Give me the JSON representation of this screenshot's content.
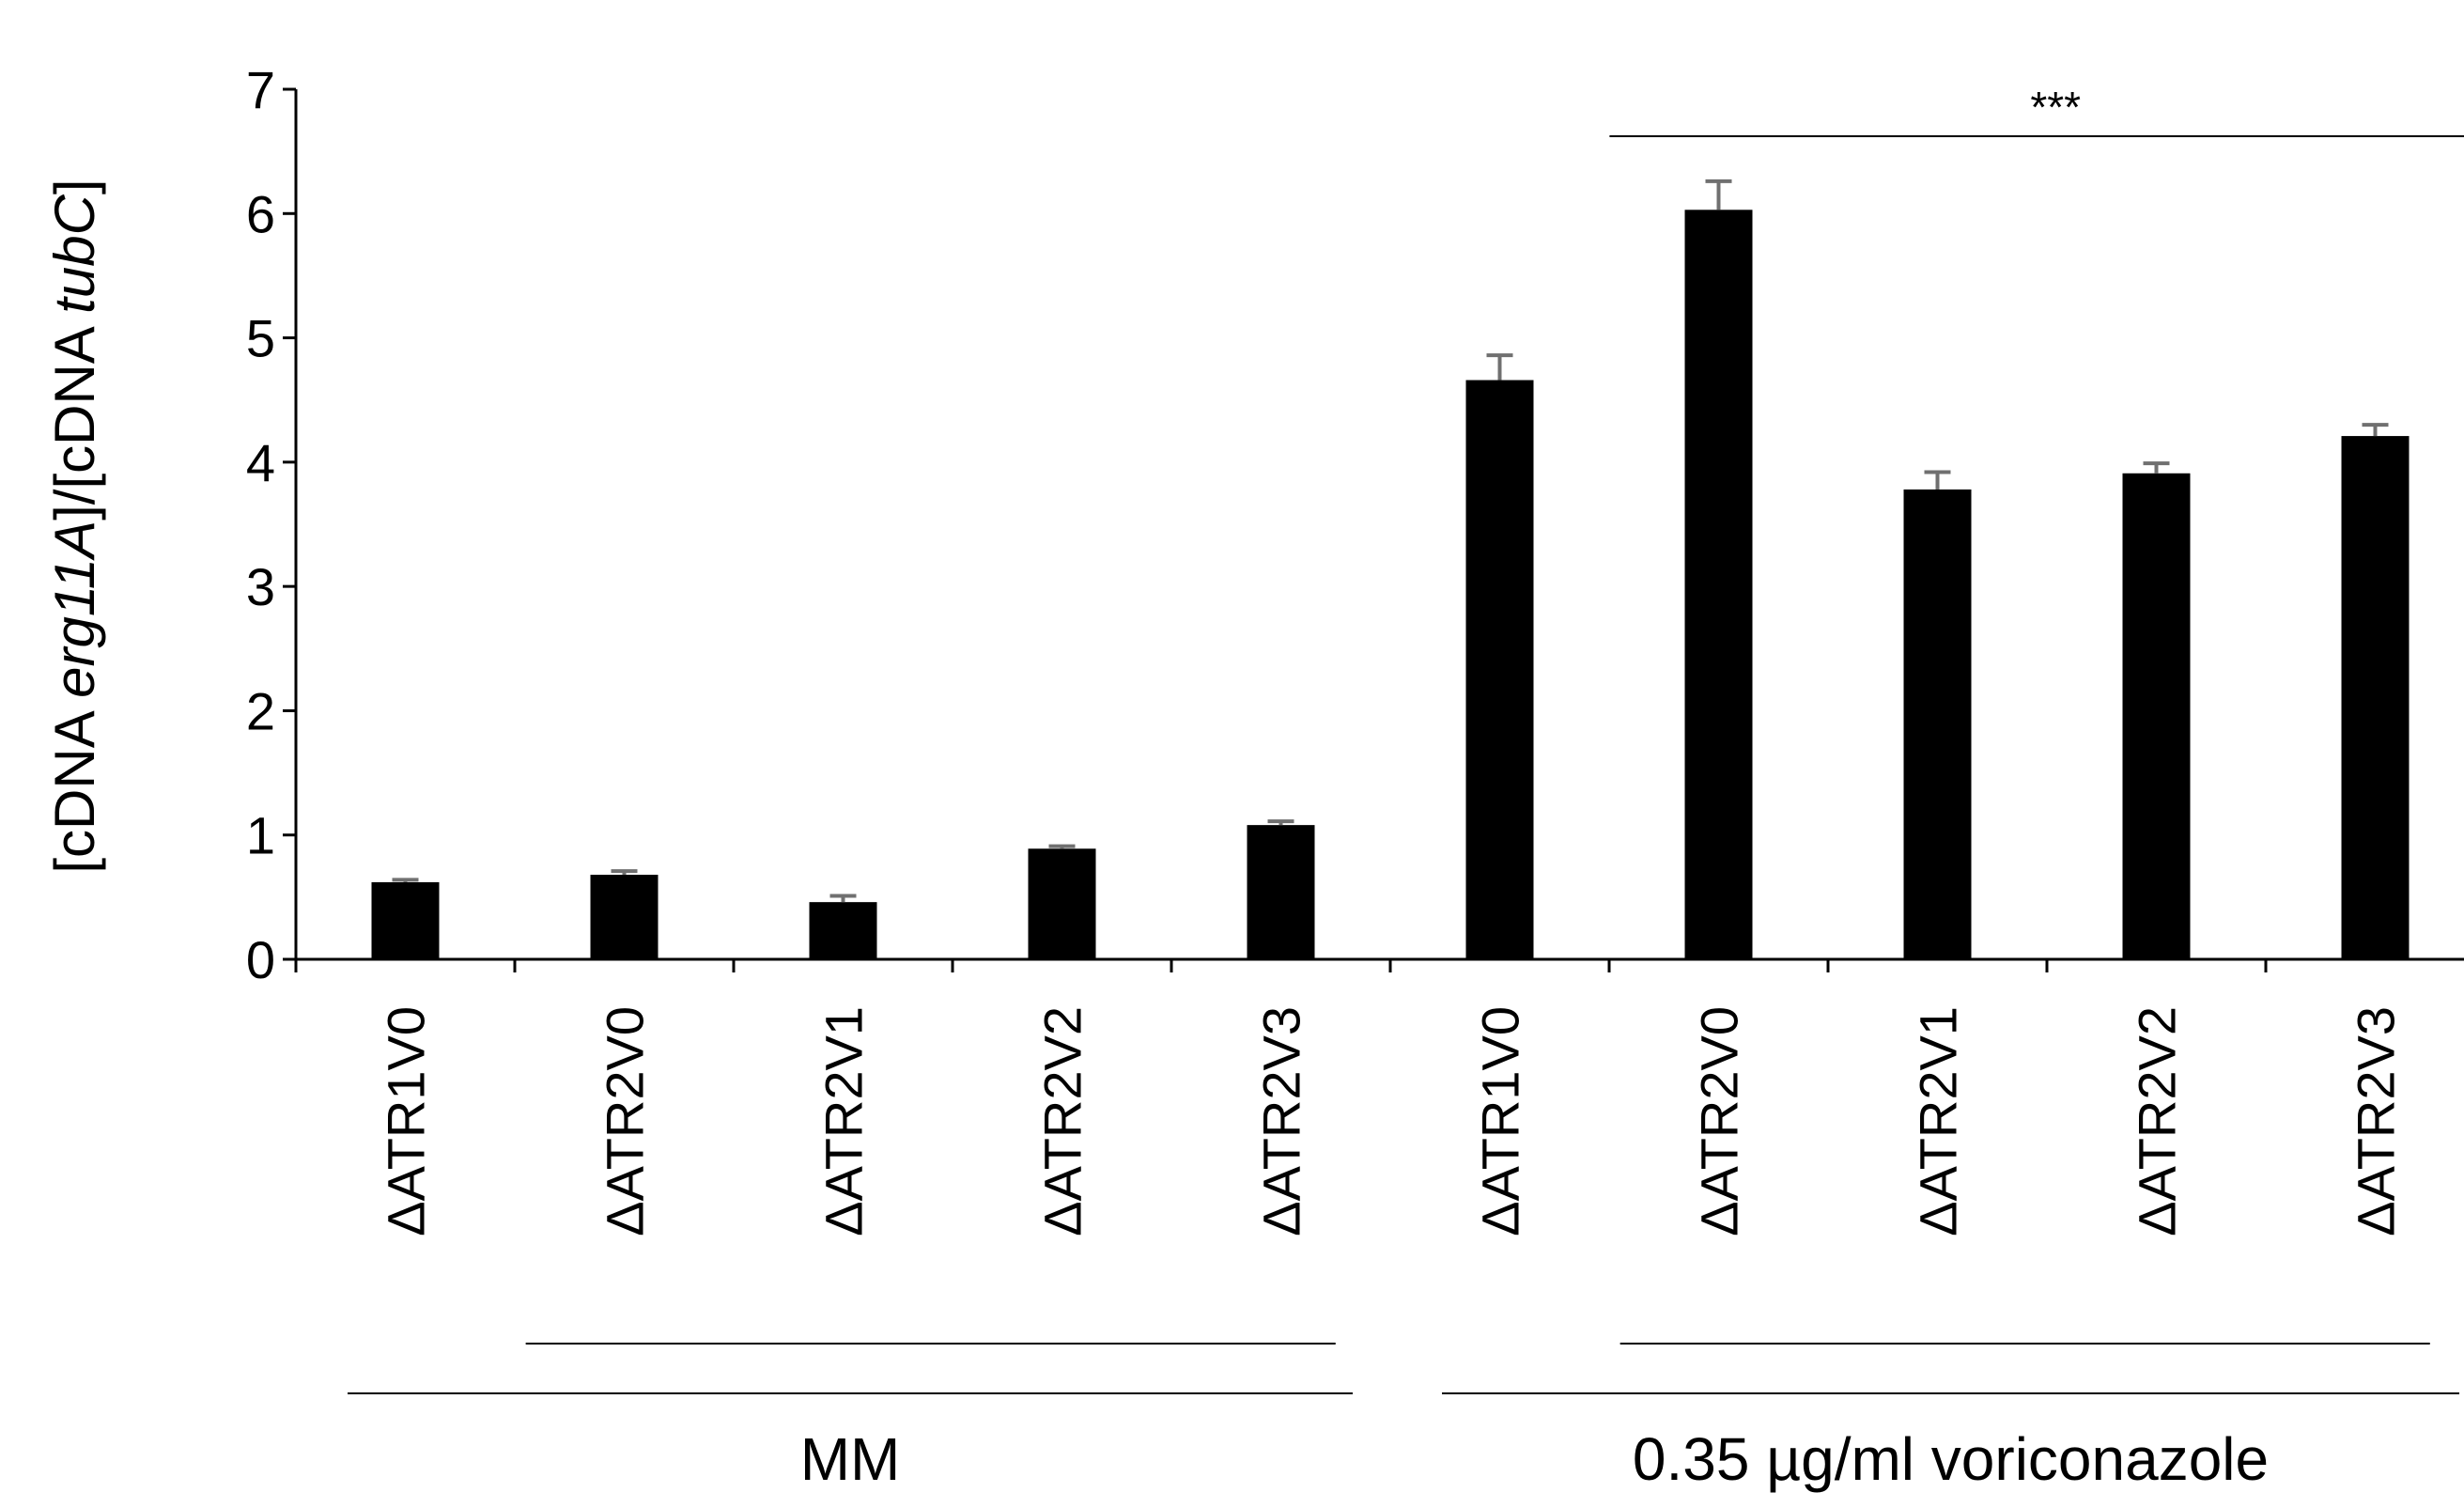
{
  "chart_data": {
    "type": "bar",
    "title": "",
    "xlabel": "",
    "ylabel": {
      "parts": [
        {
          "text": "[cDNA ",
          "italic": false
        },
        {
          "text": "erg11A",
          "italic": true
        },
        {
          "text": "]/[cDNA ",
          "italic": false
        },
        {
          "text": "tubC",
          "italic": true
        },
        {
          "text": "]",
          "italic": false
        }
      ]
    },
    "ylim": [
      0,
      7
    ],
    "yticks": [
      "0",
      "1",
      "2",
      "3",
      "4",
      "5",
      "6",
      "7"
    ],
    "grid": false,
    "bar_color": "#000000",
    "error_color": "#707070",
    "categories": [
      "ΔATR1V0",
      "ΔATR2V0",
      "ΔATR2V1",
      "ΔATR2V2",
      "ΔATR2V3",
      "ΔATR1V0",
      "ΔATR2V0",
      "ΔATR2V1",
      "ΔATR2V2",
      "ΔATR2V3"
    ],
    "values": [
      0.62,
      0.68,
      0.46,
      0.89,
      1.08,
      4.66,
      6.03,
      3.78,
      3.91,
      4.21
    ],
    "errors": [
      0.02,
      0.03,
      0.05,
      0.02,
      0.03,
      0.2,
      0.23,
      0.14,
      0.08,
      0.09
    ],
    "groups": [
      {
        "label": "MM",
        "start": 0,
        "end": 4
      },
      {
        "label": "0.35 µg/ml voriconazole",
        "start": 5,
        "end": 9
      }
    ],
    "subgroup_brackets": [
      {
        "start": 1,
        "end": 4
      },
      {
        "start": 6,
        "end": 9
      }
    ],
    "significance": [
      {
        "label": "***",
        "start": 6,
        "end": 9,
        "y": 6.6
      }
    ]
  }
}
